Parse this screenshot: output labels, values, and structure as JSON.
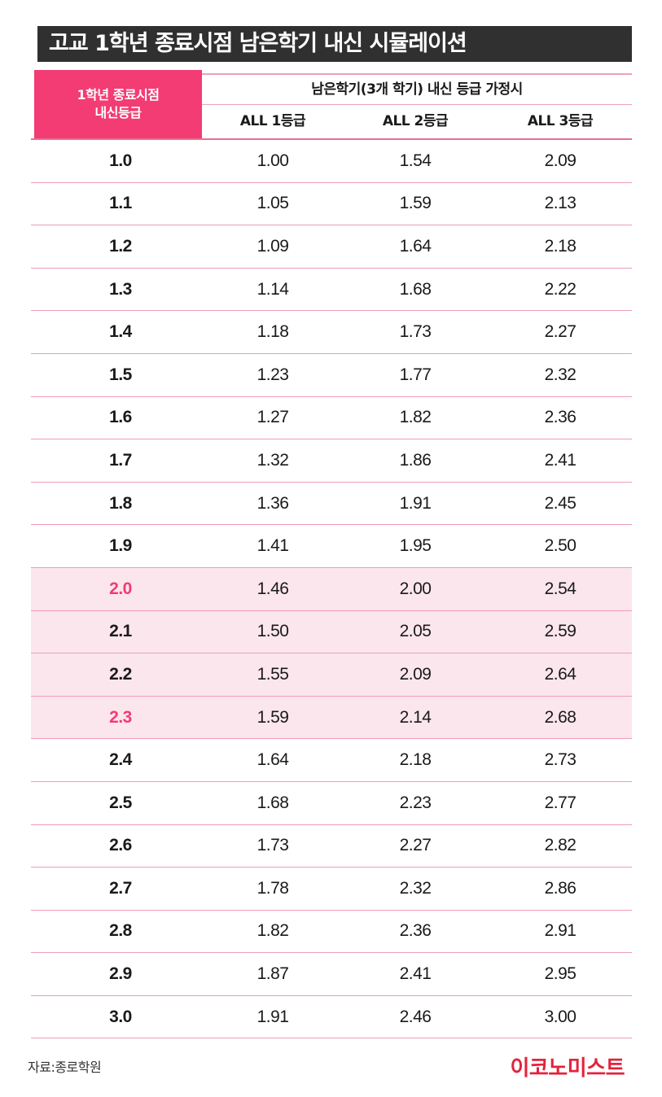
{
  "title": "고교 1학년 종료시점 남은학기 내신 시뮬레이션",
  "header": {
    "first_col_line1": "1학년 종료시점",
    "first_col_line2": "내신등급",
    "group_label": "남은학기(3개 학기) 내신 등급 가정시",
    "columns": [
      "ALL 1등급",
      "ALL 2등급",
      "ALL 3등급"
    ]
  },
  "rows": [
    {
      "grade": "1.0",
      "all1": "1.00",
      "all2": "1.54",
      "all3": "2.09",
      "highlight": false,
      "pink": false
    },
    {
      "grade": "1.1",
      "all1": "1.05",
      "all2": "1.59",
      "all3": "2.13",
      "highlight": false,
      "pink": false
    },
    {
      "grade": "1.2",
      "all1": "1.09",
      "all2": "1.64",
      "all3": "2.18",
      "highlight": false,
      "pink": false
    },
    {
      "grade": "1.3",
      "all1": "1.14",
      "all2": "1.68",
      "all3": "2.22",
      "highlight": false,
      "pink": false
    },
    {
      "grade": "1.4",
      "all1": "1.18",
      "all2": "1.73",
      "all3": "2.27",
      "highlight": false,
      "pink": false
    },
    {
      "grade": "1.5",
      "all1": "1.23",
      "all2": "1.77",
      "all3": "2.32",
      "highlight": false,
      "pink": false
    },
    {
      "grade": "1.6",
      "all1": "1.27",
      "all2": "1.82",
      "all3": "2.36",
      "highlight": false,
      "pink": false
    },
    {
      "grade": "1.7",
      "all1": "1.32",
      "all2": "1.86",
      "all3": "2.41",
      "highlight": false,
      "pink": false
    },
    {
      "grade": "1.8",
      "all1": "1.36",
      "all2": "1.91",
      "all3": "2.45",
      "highlight": false,
      "pink": false
    },
    {
      "grade": "1.9",
      "all1": "1.41",
      "all2": "1.95",
      "all3": "2.50",
      "highlight": false,
      "pink": false
    },
    {
      "grade": "2.0",
      "all1": "1.46",
      "all2": "2.00",
      "all3": "2.54",
      "highlight": true,
      "pink": true
    },
    {
      "grade": "2.1",
      "all1": "1.50",
      "all2": "2.05",
      "all3": "2.59",
      "highlight": true,
      "pink": false
    },
    {
      "grade": "2.2",
      "all1": "1.55",
      "all2": "2.09",
      "all3": "2.64",
      "highlight": true,
      "pink": false
    },
    {
      "grade": "2.3",
      "all1": "1.59",
      "all2": "2.14",
      "all3": "2.68",
      "highlight": true,
      "pink": true
    },
    {
      "grade": "2.4",
      "all1": "1.64",
      "all2": "2.18",
      "all3": "2.73",
      "highlight": false,
      "pink": false
    },
    {
      "grade": "2.5",
      "all1": "1.68",
      "all2": "2.23",
      "all3": "2.77",
      "highlight": false,
      "pink": false
    },
    {
      "grade": "2.6",
      "all1": "1.73",
      "all2": "2.27",
      "all3": "2.82",
      "highlight": false,
      "pink": false
    },
    {
      "grade": "2.7",
      "all1": "1.78",
      "all2": "2.32",
      "all3": "2.86",
      "highlight": false,
      "pink": false
    },
    {
      "grade": "2.8",
      "all1": "1.82",
      "all2": "2.36",
      "all3": "2.91",
      "highlight": false,
      "pink": false
    },
    {
      "grade": "2.9",
      "all1": "1.87",
      "all2": "2.41",
      "all3": "2.95",
      "highlight": false,
      "pink": false
    },
    {
      "grade": "3.0",
      "all1": "1.91",
      "all2": "2.46",
      "all3": "3.00",
      "highlight": false,
      "pink": false
    }
  ],
  "colors": {
    "accent": "#f23c73",
    "title_bg": "#303030",
    "highlight_bg": "#fce6ed",
    "row_line": "#ef9cb4",
    "logo": "#e3233c"
  },
  "footer": {
    "source": "자료:종로학원",
    "logo": "이코노미스트"
  }
}
